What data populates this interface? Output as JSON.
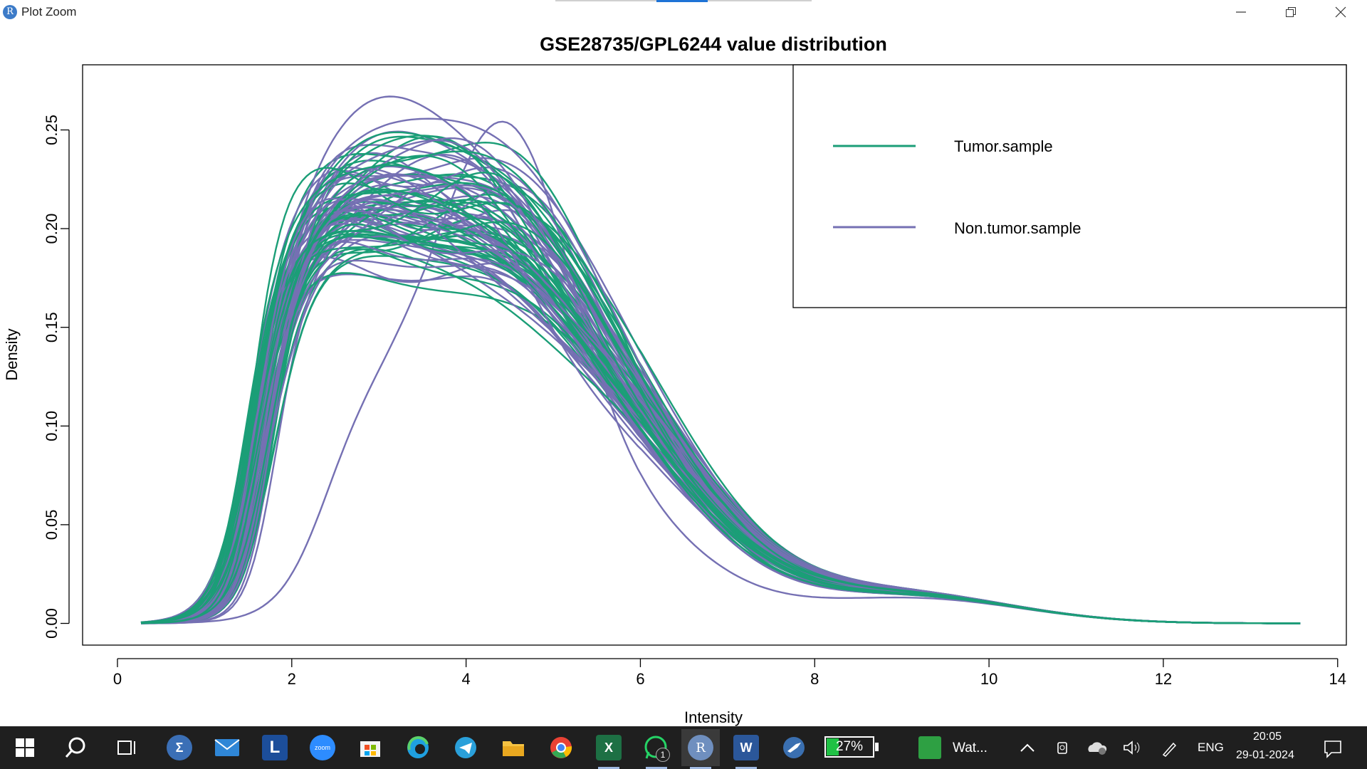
{
  "window": {
    "title": "Plot Zoom",
    "app_icon_letter": "R",
    "controls": [
      "minimize-icon",
      "restore-icon",
      "close-icon"
    ]
  },
  "chart_data": {
    "type": "line",
    "title": "GSE28735/GPL6244 value distribution",
    "xlabel": "Intensity",
    "ylabel": "Density",
    "xlim": [
      -0.4,
      14.1
    ],
    "ylim": [
      -0.011,
      0.283
    ],
    "x_ticks": [
      "0",
      "2",
      "4",
      "6",
      "8",
      "10",
      "12",
      "14"
    ],
    "y_ticks": [
      "0.00",
      "0.05",
      "0.10",
      "0.15",
      "0.20",
      "0.25"
    ],
    "legend": {
      "position": "top-right",
      "entries": [
        {
          "label": "Tumor.sample",
          "color": "#1b9e77"
        },
        {
          "label": "Non.tumor.sample",
          "color": "#7570b3"
        }
      ]
    },
    "groups": [
      {
        "name": "Tumor.sample",
        "color": "#1b9e77",
        "count": 45
      },
      {
        "name": "Non.tumor.sample",
        "color": "#7570b3",
        "count": 45
      }
    ],
    "approx_ranges": {
      "x_min": 0.27,
      "x_max": 13.6,
      "typical_peak": {
        "x": 4.0,
        "y": 0.2
      },
      "max_peak": {
        "x": 4.5,
        "y": 0.273
      }
    }
  },
  "taskbar": {
    "apps": [
      {
        "name": "start-button",
        "icon": "windows-logo"
      },
      {
        "name": "search-button",
        "icon": "search-icon"
      },
      {
        "name": "task-view-button",
        "icon": "task-view-icon"
      },
      {
        "name": "sigma-app",
        "icon": "sigma-icon",
        "glyph": "Σ",
        "color": "#3b6fb6"
      },
      {
        "name": "mail-app",
        "icon": "mail-icon",
        "color": "#2f86d6"
      },
      {
        "name": "l-app",
        "icon": "l-letter-icon",
        "glyph": "L",
        "color": "#1c4e9a"
      },
      {
        "name": "zoom-app",
        "icon": "zoom-icon",
        "glyph": "zoom",
        "color": "#2d8cff"
      },
      {
        "name": "store-app",
        "icon": "store-icon",
        "color": "#f3f3f3"
      },
      {
        "name": "edge-app",
        "icon": "edge-icon",
        "color": "#1fa0e0"
      },
      {
        "name": "telegram-app",
        "icon": "telegram-icon",
        "color": "#2aa0da"
      },
      {
        "name": "explorer-app",
        "icon": "folder-icon",
        "color": "#f6c342"
      },
      {
        "name": "chrome-app",
        "icon": "chrome-icon",
        "color": "#e94235"
      },
      {
        "name": "excel-app",
        "icon": "excel-icon",
        "glyph": "X",
        "color": "#1d7044"
      },
      {
        "name": "whatsapp-app",
        "icon": "whatsapp-icon",
        "color": "#25d366",
        "badge": "1"
      },
      {
        "name": "r-app",
        "icon": "r-icon",
        "glyph": "R",
        "color": "#6f8fbf",
        "active": true
      },
      {
        "name": "word-app",
        "icon": "word-icon",
        "glyph": "W",
        "color": "#2b579a"
      },
      {
        "name": "bird-app",
        "icon": "bird-icon",
        "color": "#3a6fb0"
      }
    ],
    "battery_percent": "27%",
    "running_app_label": "Wat...",
    "language": "ENG",
    "time": "20:05",
    "date": "29-01-2024"
  }
}
